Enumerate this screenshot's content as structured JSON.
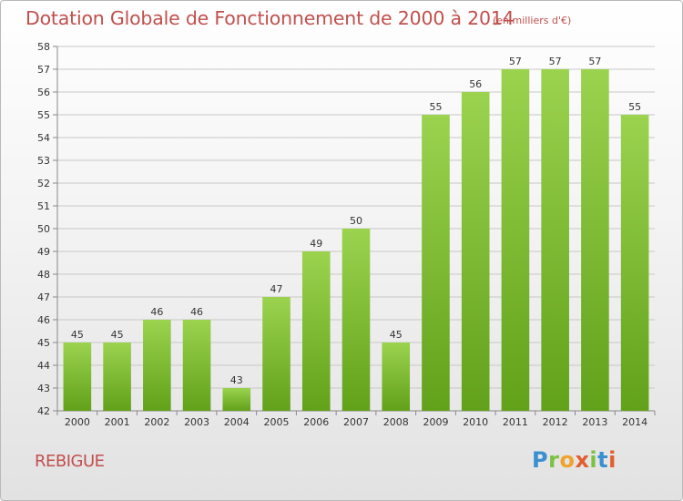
{
  "title": "Dotation Globale de Fonctionnement de 2000 à 2014",
  "subtitle": "(en milliers d'€)",
  "commune": "REBIGUE",
  "logo": "Proxiti",
  "colors": {
    "bar_light": "#9bd34f",
    "bar_dark": "#62a11a",
    "title": "#c0504d",
    "grid": "#c8c8c8"
  },
  "chart_data": {
    "type": "bar",
    "title": "Dotation Globale de Fonctionnement de 2000 à 2014",
    "subtitle": "(en milliers d'€)",
    "categories": [
      "2000",
      "2001",
      "2002",
      "2003",
      "2004",
      "2005",
      "2006",
      "2007",
      "2008",
      "2009",
      "2010",
      "2011",
      "2012",
      "2013",
      "2014"
    ],
    "values": [
      45,
      45,
      46,
      46,
      43,
      47,
      49,
      50,
      45,
      55,
      56,
      57,
      57,
      57,
      55
    ],
    "ylim": [
      42,
      58
    ],
    "yticks": [
      42,
      43,
      44,
      45,
      46,
      47,
      48,
      49,
      50,
      51,
      52,
      53,
      54,
      55,
      56,
      57,
      58
    ],
    "grid": true,
    "data_labels": true
  }
}
